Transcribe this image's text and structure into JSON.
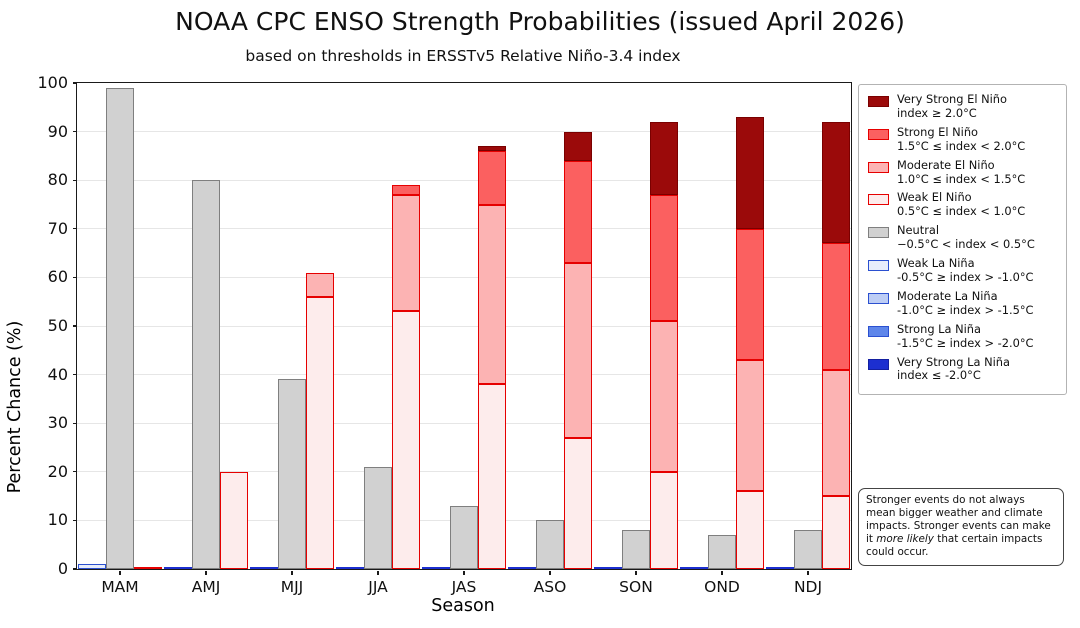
{
  "title": "NOAA CPC ENSO Strength Probabilities (issued April 2026)",
  "subtitle": "based on thresholds in ERSSTv5 Relative Niño-3.4 index",
  "axes": {
    "xlabel": "Season",
    "ylabel": "Percent Chance (%)",
    "ylim": [
      0,
      100
    ],
    "yticks": [
      0,
      10,
      20,
      30,
      40,
      50,
      60,
      70,
      80,
      90,
      100
    ],
    "grid": true
  },
  "chart_data": {
    "type": "bar",
    "stacked": true,
    "title": "NOAA CPC ENSO Strength Probabilities (issued April 2026)",
    "xlabel": "Season",
    "ylabel": "Percent Chance (%)",
    "ylim": [
      0,
      100
    ],
    "legend_position": "right",
    "categories": [
      "MAM",
      "AMJ",
      "MJJ",
      "JJA",
      "JAS",
      "ASO",
      "SON",
      "OND",
      "NDJ"
    ],
    "group_order": [
      "la_nina",
      "neutral",
      "el_nino"
    ],
    "zero_line_colors": {
      "la_nina": "#1c2fd0",
      "neutral": "#7f7f7f",
      "el_nino": "#e60000"
    },
    "series": [
      {
        "name": "Weak La Niña",
        "group": "la_nina",
        "fill": "#e7edfc",
        "edge": "#2b50d0",
        "values": [
          1,
          0,
          0,
          0,
          0,
          0,
          0,
          0,
          0
        ]
      },
      {
        "name": "Moderate La Niña",
        "group": "la_nina",
        "fill": "#bdcdf5",
        "edge": "#2b50d0",
        "values": [
          0,
          0,
          0,
          0,
          0,
          0,
          0,
          0,
          0
        ]
      },
      {
        "name": "Strong La Niña",
        "group": "la_nina",
        "fill": "#5e86ea",
        "edge": "#2b50d0",
        "values": [
          0,
          0,
          0,
          0,
          0,
          0,
          0,
          0,
          0
        ]
      },
      {
        "name": "Very Strong La Niña",
        "group": "la_nina",
        "fill": "#1c2fd0",
        "edge": "#131fa0",
        "values": [
          0,
          0,
          0,
          0,
          0,
          0,
          0,
          0,
          0
        ]
      },
      {
        "name": "Neutral",
        "group": "neutral",
        "fill": "#d1d1d1",
        "edge": "#7f7f7f",
        "values": [
          99,
          80,
          39,
          21,
          13,
          10,
          8,
          7,
          8
        ]
      },
      {
        "name": "Weak El Niño",
        "group": "el_nino",
        "fill": "#fdecec",
        "edge": "#e60000",
        "values": [
          0,
          20,
          56,
          53,
          38,
          27,
          20,
          16,
          15
        ]
      },
      {
        "name": "Moderate El Niño",
        "group": "el_nino",
        "fill": "#fcb3b3",
        "edge": "#e60000",
        "values": [
          0,
          0,
          5,
          24,
          37,
          36,
          31,
          27,
          26
        ]
      },
      {
        "name": "Strong El Niño",
        "group": "el_nino",
        "fill": "#fb6060",
        "edge": "#e60000",
        "values": [
          0,
          0,
          0,
          2,
          11,
          21,
          26,
          27,
          26
        ]
      },
      {
        "name": "Very Strong El Niño",
        "group": "el_nino",
        "fill": "#9b0a0a",
        "edge": "#7a0000",
        "values": [
          0,
          0,
          0,
          0,
          1,
          6,
          15,
          23,
          25
        ]
      }
    ]
  },
  "legend": {
    "entries": [
      {
        "label": "Very Strong El Niño",
        "range": "index ≥ 2.0°C",
        "fill": "#9b0a0a",
        "edge": "#7a0000"
      },
      {
        "label": "Strong El Niño",
        "range": "1.5°C ≤ index < 2.0°C",
        "fill": "#fb6060",
        "edge": "#e60000"
      },
      {
        "label": "Moderate El Niño",
        "range": "1.0°C ≤ index < 1.5°C",
        "fill": "#fcb3b3",
        "edge": "#e60000"
      },
      {
        "label": "Weak El Niño",
        "range": "0.5°C ≤ index < 1.0°C",
        "fill": "#fdecec",
        "edge": "#e60000"
      },
      {
        "label": "Neutral",
        "range": "−0.5°C < index < 0.5°C",
        "fill": "#d1d1d1",
        "edge": "#7f7f7f"
      },
      {
        "label": "Weak La Niña",
        "range": "-0.5°C ≥ index > -1.0°C",
        "fill": "#e7edfc",
        "edge": "#2b50d0"
      },
      {
        "label": "Moderate La Niña",
        "range": "-1.0°C ≥ index > -1.5°C",
        "fill": "#bdcdf5",
        "edge": "#2b50d0"
      },
      {
        "label": "Strong La Niña",
        "range": "-1.5°C ≥ index > -2.0°C",
        "fill": "#5e86ea",
        "edge": "#2b50d0"
      },
      {
        "label": "Very Strong La Niña",
        "range": "index ≤ -2.0°C",
        "fill": "#1c2fd0",
        "edge": "#131fa0"
      }
    ]
  },
  "note": {
    "text_before": "Stronger events do not always mean bigger weather and climate impacts. Stronger events can make it ",
    "italic": "more likely",
    "text_after": " that certain impacts could occur."
  }
}
